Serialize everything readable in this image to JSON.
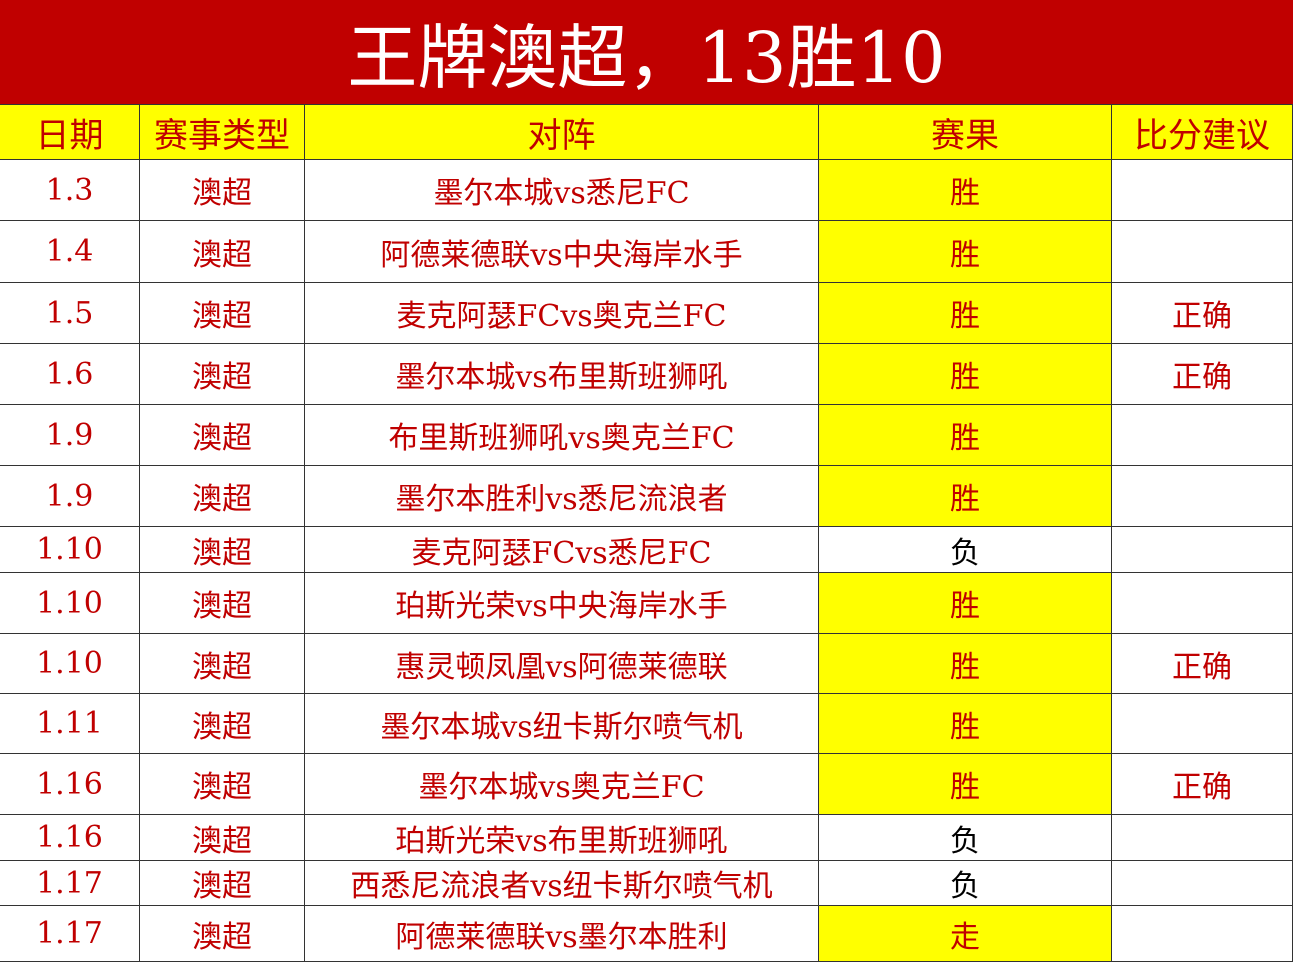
{
  "header": {
    "title": "王牌澳超，13胜10"
  },
  "table": {
    "columns": [
      "日期",
      "赛事类型",
      "对阵",
      "赛果",
      "比分建议"
    ],
    "rows": [
      [
        "1.3",
        "澳超",
        "墨尔本城vs悉尼FC",
        "胜",
        ""
      ],
      [
        "1.4",
        "澳超",
        "阿德莱德联vs中央海岸水手",
        "胜",
        ""
      ],
      [
        "1.5",
        "澳超",
        "麦克阿瑟FCvs奥克兰FC",
        "胜",
        "正确"
      ],
      [
        "1.6",
        "澳超",
        "墨尔本城vs布里斯班狮吼",
        "胜",
        "正确"
      ],
      [
        "1.9",
        "澳超",
        "布里斯班狮吼vs奥克兰FC",
        "胜",
        ""
      ],
      [
        "1.9",
        "澳超",
        "墨尔本胜利vs悉尼流浪者",
        "胜",
        ""
      ],
      [
        "1.10",
        "澳超",
        "麦克阿瑟FCvs悉尼FC",
        "负",
        ""
      ],
      [
        "1.10",
        "澳超",
        "珀斯光荣vs中央海岸水手",
        "胜",
        ""
      ],
      [
        "1.10",
        "澳超",
        "惠灵顿凤凰vs阿德莱德联",
        "胜",
        "正确"
      ],
      [
        "1.11",
        "澳超",
        "墨尔本城vs纽卡斯尔喷气机",
        "胜",
        ""
      ],
      [
        "1.16",
        "澳超",
        "墨尔本城vs奥克兰FC",
        "胜",
        "正确"
      ],
      [
        "1.16",
        "澳超",
        "珀斯光荣vs布里斯班狮吼",
        "负",
        ""
      ],
      [
        "1.17",
        "澳超",
        "西悉尼流浪者vs纽卡斯尔喷气机",
        "负",
        ""
      ],
      [
        "1.17",
        "澳超",
        "阿德莱德联vs墨尔本胜利",
        "走",
        ""
      ]
    ],
    "result_fills": [
      "#ffff00",
      "#ffff00",
      "#ffff00",
      "#ffff00",
      "#ffff00",
      "#ffff00",
      "#ffffff",
      "#ffff00",
      "#ffff00",
      "#ffff00",
      "#ffff00",
      "#ffffff",
      "#ffffff",
      "#ffff00"
    ],
    "result_text_colors": [
      "#c00000",
      "#c00000",
      "#c00000",
      "#c00000",
      "#c00000",
      "#c00000",
      "#000000",
      "#c00000",
      "#c00000",
      "#c00000",
      "#c00000",
      "#000000",
      "#000000",
      "#c00000"
    ]
  }
}
